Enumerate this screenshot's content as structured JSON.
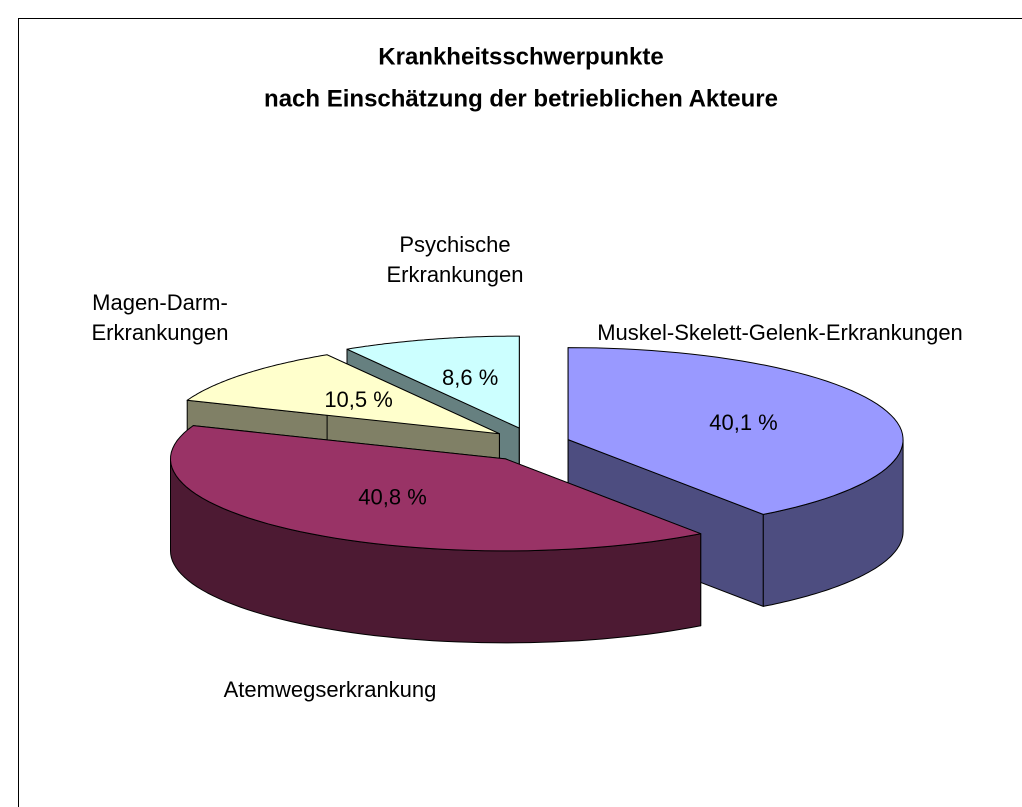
{
  "chart_data": {
    "type": "pie3d",
    "title": [
      "Krankheitsschwerpunkte",
      "nach Einschätzung der betrieblichen Akteure"
    ],
    "categories": [
      "Muskel-Skelett-Gelenk-Erkrankungen",
      "Atemwegserkrankung",
      "Magen-Darm-Erkrankungen",
      "Psychische Erkrankungen"
    ],
    "values": [
      40.1,
      40.8,
      10.5,
      8.6
    ],
    "value_labels": [
      "40,1 %",
      "40,8 %",
      "10,5 %",
      "8,6 %"
    ],
    "colors": [
      "#9999ff",
      "#993366",
      "#ffffcc",
      "#ccffff"
    ],
    "exploded": true
  }
}
